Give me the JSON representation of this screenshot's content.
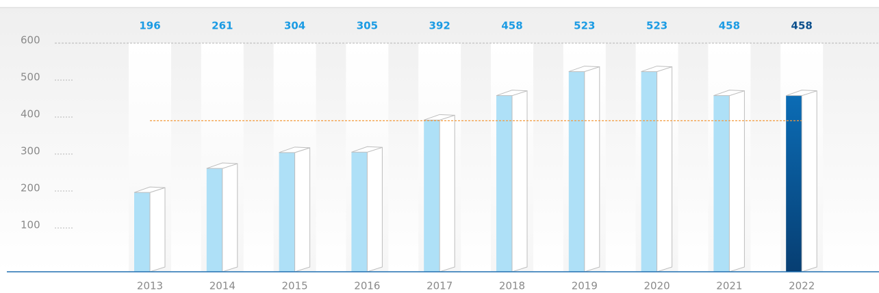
{
  "chart_data": {
    "type": "bar3d",
    "categories": [
      "2013",
      "2014",
      "2015",
      "2016",
      "2017",
      "2018",
      "2019",
      "2020",
      "2021",
      "2022"
    ],
    "values": [
      196,
      261,
      304,
      305,
      392,
      458,
      523,
      523,
      458,
      458
    ],
    "colors": [
      "#aee0f7",
      "#aee0f7",
      "#aee0f7",
      "#aee0f7",
      "#aee0f7",
      "#aee0f7",
      "#aee0f7",
      "#aee0f7",
      "#aee0f7",
      "#0a5fa3"
    ],
    "label_colors": [
      "#1b9be3",
      "#1b9be3",
      "#1b9be3",
      "#1b9be3",
      "#1b9be3",
      "#1b9be3",
      "#1b9be3",
      "#1b9be3",
      "#1b9be3",
      "#0b4f8c"
    ],
    "ylim": [
      0,
      600
    ],
    "yticks": [
      100,
      200,
      300,
      400,
      500,
      600
    ],
    "reference_line": 390,
    "reference_color": "#f39a3c"
  }
}
